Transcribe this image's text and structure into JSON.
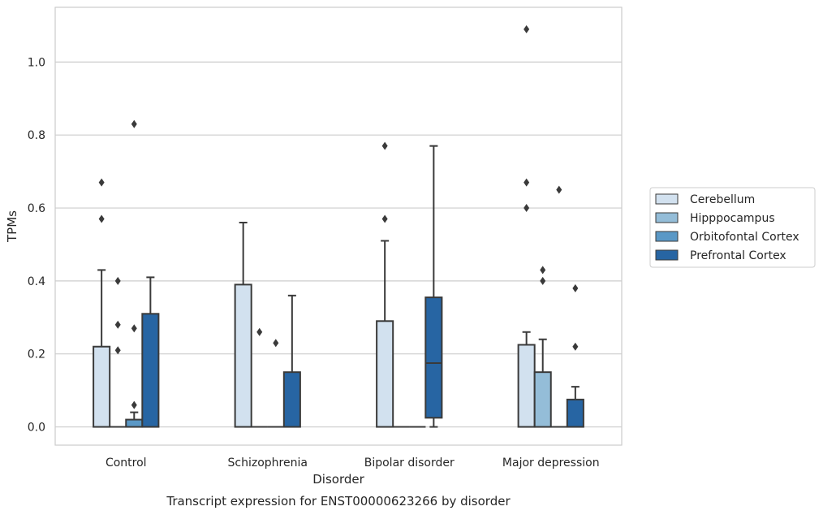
{
  "chart_data": {
    "type": "box",
    "title": "Transcript expression for ENST00000623266 by disorder",
    "xlabel": "Disorder",
    "ylabel": "TPMs",
    "ylim": [
      -0.05,
      1.15
    ],
    "yticks": [
      "0.0",
      "0.2",
      "0.4",
      "0.6",
      "0.8",
      "1.0"
    ],
    "grid": "horizontal",
    "legend_position": "right",
    "categories": [
      "Control",
      "Schizophrenia",
      "Bipolar disorder",
      "Major depression"
    ],
    "series": [
      {
        "name": "Cerebellum",
        "color": "#d2e1ef",
        "boxes": [
          {
            "whislo": 0,
            "q1": 0,
            "med": 0,
            "q3": 0.22,
            "whishi": 0.43,
            "fliers": [
              0.57,
              0.67
            ]
          },
          {
            "whislo": 0,
            "q1": 0,
            "med": 0,
            "q3": 0.39,
            "whishi": 0.56,
            "fliers": []
          },
          {
            "whislo": 0,
            "q1": 0,
            "med": 0,
            "q3": 0.29,
            "whishi": 0.51,
            "fliers": [
              0.57,
              0.77
            ]
          },
          {
            "whislo": 0,
            "q1": 0,
            "med": 0,
            "q3": 0.225,
            "whishi": 0.26,
            "fliers": [
              0.6,
              0.67,
              1.09
            ]
          }
        ]
      },
      {
        "name": "Hipppocampus",
        "color": "#94bdd8",
        "boxes": [
          {
            "whislo": 0,
            "q1": 0,
            "med": 0,
            "q3": 0,
            "whishi": 0,
            "fliers": [
              0.21,
              0.28,
              0.4
            ]
          },
          {
            "whislo": 0,
            "q1": 0,
            "med": 0,
            "q3": 0,
            "whishi": 0,
            "fliers": [
              0.26
            ]
          },
          {
            "whislo": 0,
            "q1": 0,
            "med": 0,
            "q3": 0,
            "whishi": 0,
            "fliers": []
          },
          {
            "whislo": 0,
            "q1": 0,
            "med": 0,
            "q3": 0.15,
            "whishi": 0.24,
            "fliers": [
              0.4,
              0.43
            ]
          }
        ]
      },
      {
        "name": "Orbitofontal Cortex",
        "color": "#5a98c6",
        "boxes": [
          {
            "whislo": 0,
            "q1": 0,
            "med": 0,
            "q3": 0.02,
            "whishi": 0.04,
            "fliers": [
              0.06,
              0.27,
              0.83
            ]
          },
          {
            "whislo": 0,
            "q1": 0,
            "med": 0,
            "q3": 0,
            "whishi": 0,
            "fliers": [
              0.23
            ]
          },
          {
            "whislo": 0,
            "q1": 0,
            "med": 0,
            "q3": 0,
            "whishi": 0,
            "fliers": []
          },
          {
            "whislo": 0,
            "q1": 0,
            "med": 0,
            "q3": 0,
            "whishi": 0,
            "fliers": [
              0.65
            ]
          }
        ]
      },
      {
        "name": "Prefrontal Cortex",
        "color": "#2765a3",
        "boxes": [
          {
            "whislo": 0,
            "q1": 0,
            "med": 0,
            "q3": 0.31,
            "whishi": 0.41,
            "fliers": []
          },
          {
            "whislo": 0,
            "q1": 0,
            "med": 0,
            "q3": 0.15,
            "whishi": 0.36,
            "fliers": []
          },
          {
            "whislo": 0,
            "q1": 0.025,
            "med": 0.175,
            "q3": 0.355,
            "whishi": 0.77,
            "fliers": []
          },
          {
            "whislo": 0,
            "q1": 0,
            "med": 0,
            "q3": 0.075,
            "whishi": 0.11,
            "fliers": [
              0.22,
              0.38
            ]
          }
        ]
      }
    ]
  }
}
